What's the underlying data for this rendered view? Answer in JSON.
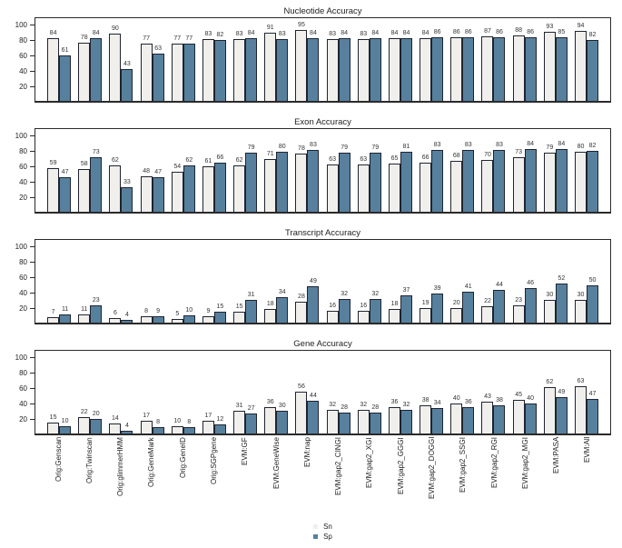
{
  "colors": {
    "sn_fill": "#f0efec",
    "sp_fill": "#57809d",
    "bar_border": "#1e2430",
    "axis": "#2a2a2a",
    "text": "#222222"
  },
  "y_axis": {
    "ticks": [
      20,
      40,
      60,
      80,
      100
    ]
  },
  "categories": [
    "Orig:Genscan",
    "Orig:Twinscan",
    "Orig:glimmerHMM",
    "Orig:GeneMark",
    "Orig:GeneID",
    "Orig:SGPgene",
    "EVM:GF",
    "EVM:GeneWise",
    "EVM:nap",
    "EVM:gap2_CINGI",
    "EVM:gap2_XGI",
    "EVM:gap2_GGGI",
    "EVM:gap2_DOGGI",
    "EVM:gap2_SSGI",
    "EVM:gap2_RGI",
    "EVM:gap2_MGI",
    "EVM:PASA",
    "EVM:All"
  ],
  "chart_data": [
    {
      "type": "bar",
      "title": "Nucleotide Accuracy",
      "ylim": [
        0,
        100
      ],
      "grid": false,
      "series": [
        {
          "name": "Sn",
          "values": [
            84,
            78,
            90,
            77,
            77,
            83,
            83,
            91,
            95,
            83,
            83,
            84,
            84,
            86,
            87,
            88,
            93,
            94
          ]
        },
        {
          "name": "Sp",
          "values": [
            61,
            84,
            43,
            63,
            77,
            82,
            84,
            83,
            84,
            84,
            84,
            84,
            86,
            86,
            86,
            86,
            85,
            82
          ]
        }
      ]
    },
    {
      "type": "bar",
      "title": "Exon Accuracy",
      "ylim": [
        0,
        100
      ],
      "grid": false,
      "series": [
        {
          "name": "Sn",
          "values": [
            59,
            58,
            62,
            48,
            54,
            61,
            62,
            71,
            78,
            63,
            63,
            65,
            66,
            68,
            70,
            73,
            79,
            80
          ]
        },
        {
          "name": "Sp",
          "values": [
            47,
            73,
            33,
            47,
            62,
            66,
            79,
            80,
            83,
            79,
            79,
            81,
            83,
            83,
            83,
            84,
            84,
            82
          ]
        }
      ]
    },
    {
      "type": "bar",
      "title": "Transcript Accuracy",
      "ylim": [
        0,
        100
      ],
      "grid": false,
      "series": [
        {
          "name": "Sn",
          "values": [
            7,
            11,
            6,
            8,
            5,
            9,
            15,
            18,
            28,
            16,
            16,
            18,
            19,
            20,
            22,
            23,
            30,
            30
          ]
        },
        {
          "name": "Sp",
          "values": [
            11,
            23,
            4,
            9,
            10,
            15,
            31,
            34,
            49,
            32,
            32,
            37,
            39,
            41,
            44,
            46,
            52,
            50
          ]
        }
      ]
    },
    {
      "type": "bar",
      "title": "Gene Accuracy",
      "ylim": [
        0,
        100
      ],
      "grid": false,
      "series": [
        {
          "name": "Sn",
          "values": [
            15,
            22,
            14,
            17,
            10,
            17,
            31,
            36,
            56,
            32,
            32,
            36,
            38,
            40,
            43,
            45,
            62,
            63
          ]
        },
        {
          "name": "Sp",
          "values": [
            10,
            20,
            4,
            8,
            8,
            12,
            27,
            30,
            44,
            28,
            28,
            32,
            34,
            36,
            38,
            40,
            49,
            47
          ]
        }
      ]
    }
  ],
  "legend": {
    "position": "bottom-center",
    "items": [
      {
        "label": "Sn",
        "color": "#f0efec"
      },
      {
        "label": "Sp",
        "color": "#57809d"
      }
    ]
  }
}
